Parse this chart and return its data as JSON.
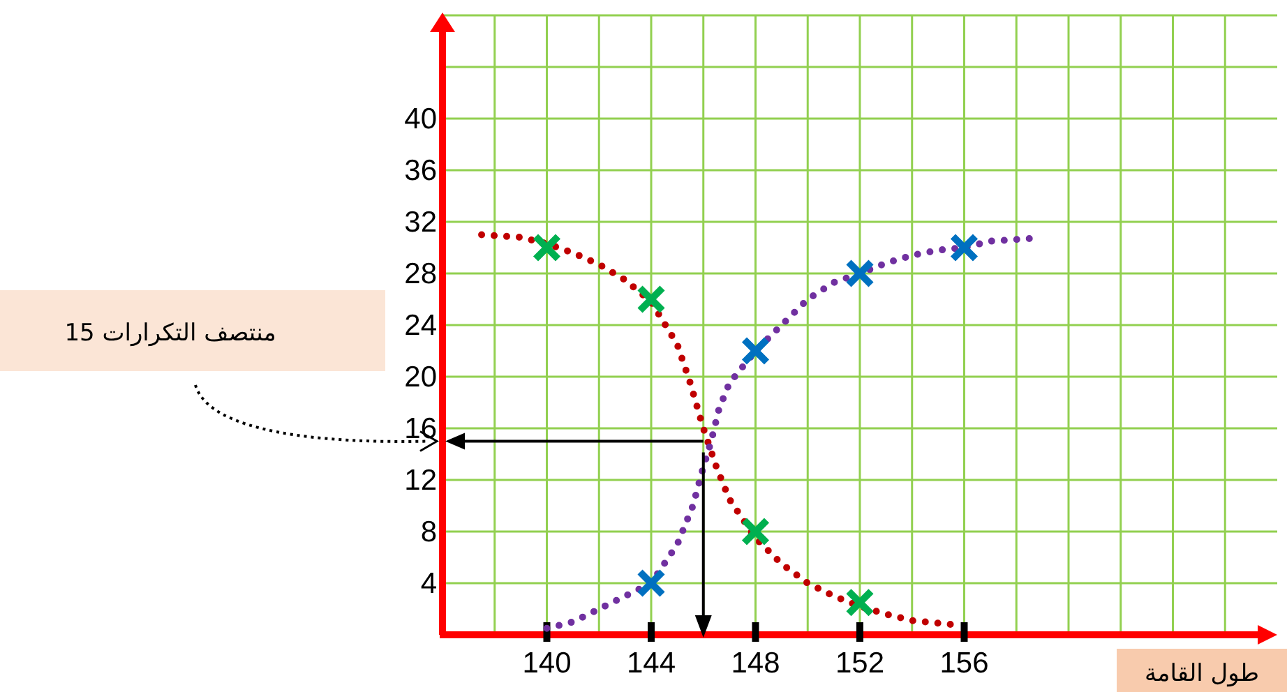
{
  "chart_data": {
    "type": "line",
    "xlabel": "طول القامة",
    "annotations": [
      "منتصف التكرارات 15"
    ],
    "xlim": [
      136,
      168
    ],
    "ylim": [
      0,
      48
    ],
    "xticks": [
      {
        "value": 138,
        "label": null
      },
      140,
      {
        "value": 142,
        "label": null
      },
      144,
      {
        "value": 146,
        "label": null
      },
      148,
      {
        "value": 150,
        "label": null
      },
      152,
      {
        "value": 154,
        "label": null
      },
      156,
      {
        "value": 158,
        "label": null
      },
      {
        "value": 160,
        "label": null
      },
      {
        "value": 162,
        "label": null
      },
      {
        "value": 164,
        "label": null
      },
      {
        "value": 166,
        "label": null
      }
    ],
    "yticks": [
      4,
      8,
      12,
      16,
      20,
      24,
      28,
      32,
      36,
      40,
      {
        "value": 44,
        "label": null
      }
    ],
    "grid": true,
    "ref_lines": [
      {
        "axis": "y",
        "value": 15,
        "color": "#000000"
      },
      {
        "axis": "x",
        "value": 146,
        "color": "#000000"
      }
    ],
    "series": [
      {
        "type": "line",
        "color": "#c00000",
        "marker": "none",
        "line_style": "dotted",
        "x": [
          137.5,
          139,
          140,
          141,
          142,
          143,
          144,
          145,
          145.5,
          146,
          146.5,
          147,
          148,
          149,
          150,
          151,
          152,
          153,
          154,
          155.5
        ],
        "values": [
          31,
          30.8,
          30.3,
          29.6,
          28.7,
          27.5,
          25.8,
          22.5,
          19.5,
          16,
          13,
          10.5,
          7.5,
          5.5,
          4,
          3,
          2.2,
          1.6,
          1.1,
          0.8
        ]
      },
      {
        "type": "line",
        "color": "#7030a0",
        "marker": "none",
        "line_style": "dotted",
        "x": [
          140,
          141,
          142,
          143,
          144,
          145,
          145.6,
          146,
          146.3,
          146.6,
          147,
          148,
          149,
          150,
          151,
          152,
          153,
          154,
          155,
          156,
          157,
          158.5
        ],
        "values": [
          0.5,
          1,
          2,
          3,
          4,
          7,
          10,
          13,
          15,
          17.5,
          19.5,
          22,
          24,
          26,
          27.3,
          28,
          28.8,
          29.4,
          29.8,
          30,
          30.5,
          30.7
        ]
      },
      {
        "type": "scatter",
        "color": "#00b050",
        "marker": "cross",
        "x": [
          140,
          144,
          148,
          152
        ],
        "values": [
          30,
          26,
          8,
          2.5
        ]
      },
      {
        "type": "scatter",
        "color": "#0070c0",
        "marker": "cross",
        "x": [
          144,
          148,
          152,
          156
        ],
        "values": [
          4,
          22,
          28,
          30
        ]
      }
    ]
  }
}
